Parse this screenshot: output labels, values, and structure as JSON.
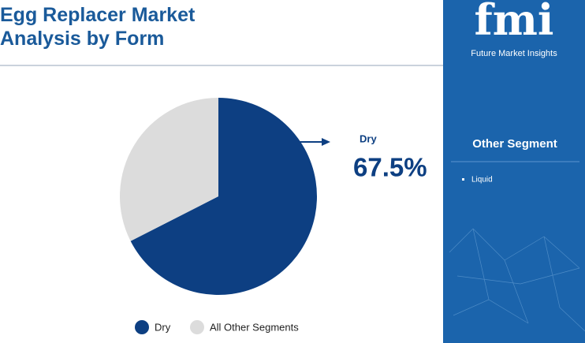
{
  "chart_data": {
    "type": "pie",
    "title": "Egg Replacer Market Analysis by Form",
    "categories": [
      "Dry",
      "All Other Segments"
    ],
    "values": [
      67.5,
      32.5
    ],
    "value_labels": [
      "67.5%",
      null
    ],
    "colors": [
      "#0d3f82",
      "#dcdcdc"
    ]
  },
  "panel": {
    "logo": "fmi",
    "brand": "Future Market Insights",
    "heading": "Other Segment",
    "items": [
      "Liquid"
    ]
  }
}
